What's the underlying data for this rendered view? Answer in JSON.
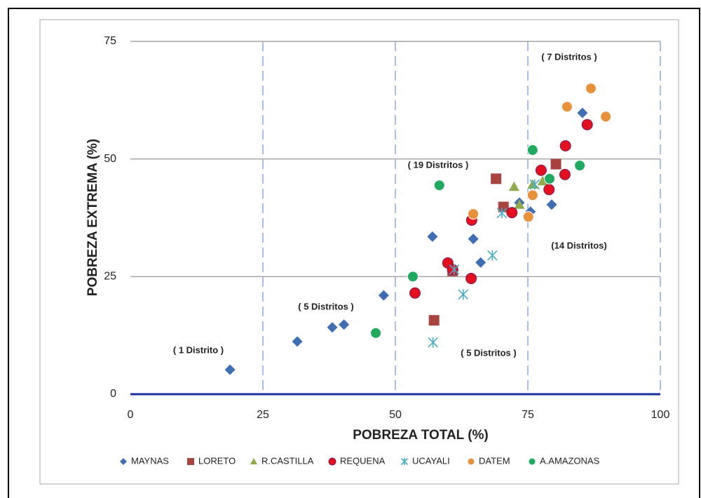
{
  "chart_data": {
    "type": "scatter",
    "xlabel": "POBREZA TOTAL  (%)",
    "ylabel": "POBREZA EXTREMA (%)",
    "xlim": [
      0,
      100
    ],
    "xticks": [
      0,
      25,
      50,
      75,
      100
    ],
    "ylim": [
      0,
      75
    ],
    "yticks": [
      0,
      25,
      50,
      75
    ],
    "grid": true,
    "legend": "bottom",
    "annotations": [
      "( 7 Distritos )",
      "( 19 Distritos )",
      "(14 Distritos)",
      "( 5 Distritos )",
      "( 1 Distrito )",
      "( 5 Distritos )"
    ],
    "series": [
      {
        "name": "MAYNAS",
        "color": "#3f6eb3",
        "marker": "diamond",
        "x": [
          18.8,
          31.5,
          38.1,
          40.3,
          47.8,
          57.0,
          64.7,
          66.1,
          61.0,
          73.4,
          75.5,
          79.5,
          85.3
        ],
        "values": [
          5.2,
          11.2,
          14.2,
          14.8,
          21.0,
          33.5,
          33.0,
          28.0,
          26.4,
          40.7,
          38.8,
          40.3,
          59.8
        ]
      },
      {
        "name": "LORETO",
        "color": "#a7443f",
        "marker": "square",
        "x": [
          57.3,
          60.8,
          69.0,
          70.4,
          80.3
        ],
        "values": [
          15.7,
          26.2,
          45.8,
          39.8,
          48.9
        ]
      },
      {
        "name": "R.CASTILLA",
        "color": "#8fab4d",
        "marker": "triangle",
        "x": [
          72.4,
          73.4,
          77.8,
          75.9
        ],
        "values": [
          44.1,
          40.3,
          45.3,
          44.6
        ]
      },
      {
        "name": "REQUENA",
        "color": "#e3101f",
        "marker": "circle",
        "x": [
          53.7,
          59.9,
          60.8,
          64.3,
          64.4,
          72.0,
          77.5,
          79.0,
          82.0,
          82.1,
          86.2
        ],
        "values": [
          21.5,
          27.9,
          26.5,
          24.6,
          37.0,
          38.6,
          47.6,
          43.5,
          46.7,
          52.8,
          57.3
        ]
      },
      {
        "name": "UCAYALI",
        "color": "#4bacc6",
        "marker": "asterisk",
        "x": [
          57.1,
          62.8,
          68.3,
          70.1,
          76.3,
          61.1
        ],
        "values": [
          11.0,
          21.2,
          29.5,
          38.5,
          44.6,
          26.5
        ]
      },
      {
        "name": "DATEM",
        "color": "#e8913b",
        "marker": "circle",
        "x": [
          64.7,
          75.1,
          75.9,
          82.4,
          86.9,
          89.7
        ],
        "values": [
          38.3,
          37.7,
          42.3,
          61.1,
          65.0,
          59.0
        ]
      },
      {
        "name": "A.AMAZONAS",
        "color": "#1faa60",
        "marker": "circle",
        "x": [
          46.3,
          53.3,
          58.3,
          75.9,
          79.1,
          84.8
        ],
        "values": [
          13.0,
          25.0,
          44.4,
          51.9,
          45.8,
          48.6
        ]
      }
    ]
  }
}
